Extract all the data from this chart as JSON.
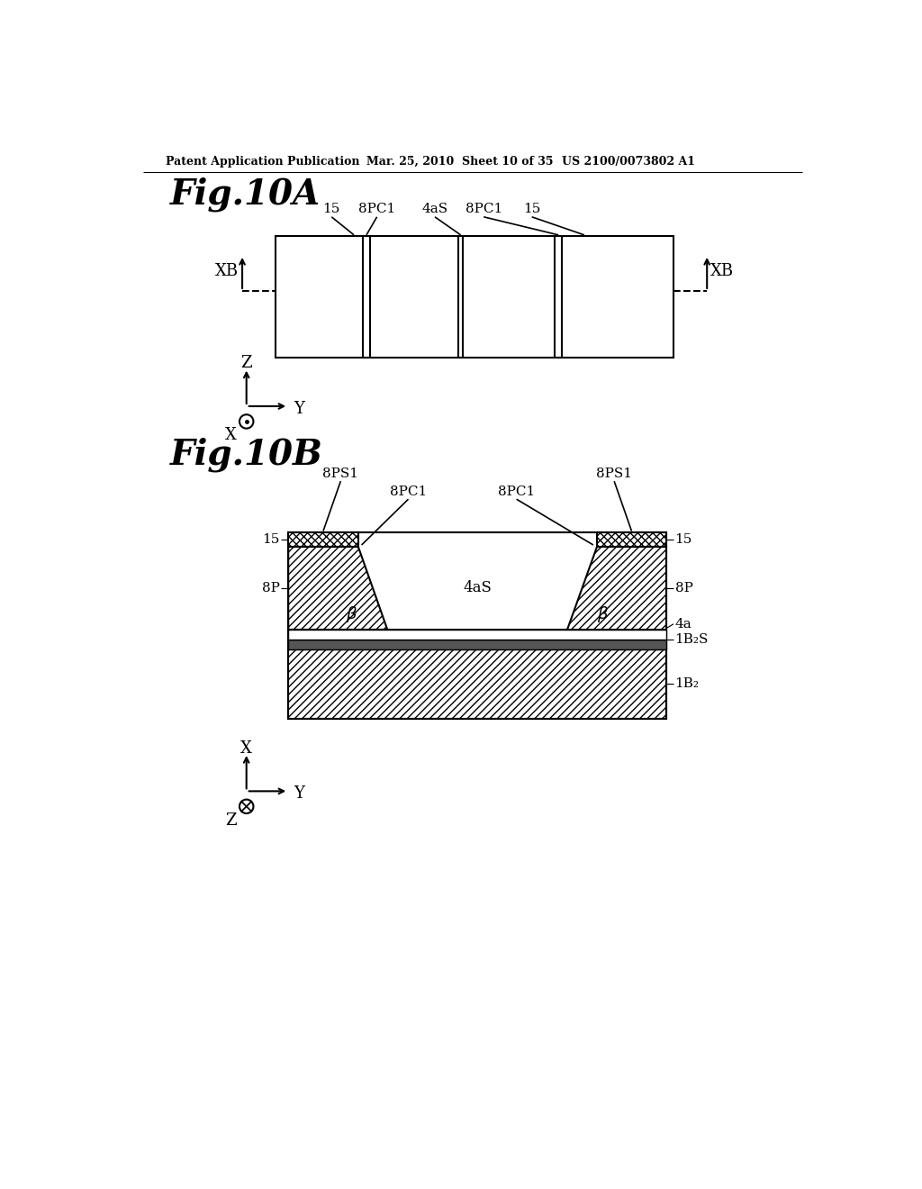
{
  "bg_color": "#ffffff",
  "header_left": "Patent Application Publication",
  "header_mid": "Mar. 25, 2010  Sheet 10 of 35",
  "header_right": "US 2100/0073802 A1",
  "fig10a_title": "Fig.10A",
  "fig10b_title": "Fig.10B",
  "line_color": "#000000"
}
